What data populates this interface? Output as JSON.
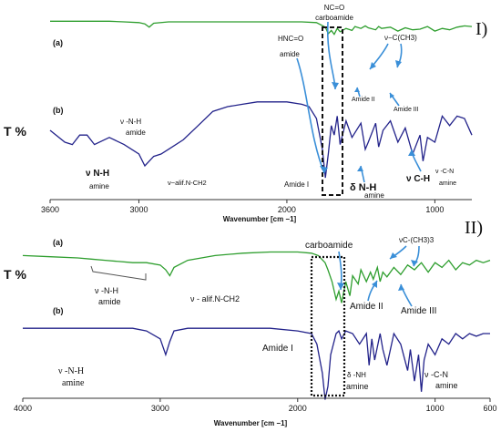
{
  "panels": [
    {
      "roman": "I)",
      "t_percent": "T %",
      "series": [
        {
          "label": "(a)",
          "color": "#2e9e2e",
          "name": ""
        },
        {
          "label": "(b)",
          "color": "#22228a",
          "name": ""
        }
      ],
      "xlabel": "Wavenumber [cm −1]",
      "xlim": [
        3600,
        750
      ],
      "xticks": [
        "3600",
        "3000",
        "2000",
        "1000"
      ],
      "annotations": {
        "hnc_o": "HNC=O",
        "amide_word": "amide",
        "nc_o": "NC=O",
        "carboamide": "carboamide",
        "v_c_ch3": "ν−C(CH3)",
        "amide_ii": "Amide II",
        "amide_iii": "Amide III",
        "v_nh_amide_1": "ν -N-H",
        "v_nh_amide_2": "amide",
        "v_nh_amine_1": "ν N-H",
        "v_nh_amine_2": "amine",
        "v_alif": "ν−alif.N-CH2",
        "amide_i": "Amide I",
        "delta_nh_1": "δ N-H",
        "delta_nh_2": "amine",
        "v_ch": "ν C-H",
        "v_cn_1": "ν -C-N",
        "v_cn_2": "amine"
      }
    },
    {
      "roman": "II)",
      "t_percent": "T %",
      "series": [
        {
          "label": "(a)",
          "color": "#2e9e2e",
          "name": ""
        },
        {
          "label": "(b)",
          "color": "#22228a",
          "name": ""
        }
      ],
      "xlabel": "Wavenumber [cm −1]",
      "xlim": [
        4000,
        600
      ],
      "xticks": [
        "4000",
        "3000",
        "2000",
        "1000",
        "600"
      ],
      "annotations": {
        "carboamide": "carboamide",
        "vc_ch3": "νC-(CH3)3",
        "v_nh_amide_1": "ν -N-H",
        "v_nh_amide_2": "amide",
        "v_alif": "ν - alif.N-CH2",
        "amide_ii": "Amide II",
        "amide_iii": "Amide III",
        "amide_i": "Amide I",
        "v_nh_amine_1": "ν -N-H",
        "v_nh_amine_2": "amine",
        "delta_nh_1": "δ -NH",
        "delta_nh_2": "amine",
        "v_cn_1": "ν -C-N",
        "v_cn_2": "amine"
      }
    }
  ],
  "chart_data": [
    {
      "type": "line",
      "title": "",
      "xlabel": "Wavenumber [cm −1]",
      "ylabel": "T %",
      "xlim": [
        3600,
        750
      ],
      "grid": false,
      "series": [
        {
          "name": "(a)",
          "x": [
            3600,
            3400,
            3200,
            3100,
            3000,
            2960,
            2930,
            2900,
            2800,
            2600,
            2400,
            2200,
            2000,
            1900,
            1800,
            1740,
            1720,
            1700,
            1680,
            1660,
            1640,
            1600,
            1560,
            1540,
            1500,
            1470,
            1450,
            1400,
            1380,
            1360,
            1300,
            1250,
            1200,
            1150,
            1100,
            1050,
            1000,
            950,
            900,
            850,
            800,
            750
          ],
          "y": [
            44,
            44,
            44,
            43,
            42,
            40,
            35,
            41,
            43,
            43,
            43,
            43,
            43,
            43,
            42,
            35,
            25,
            30,
            24,
            33,
            28,
            33,
            30,
            36,
            33,
            37,
            34,
            31,
            36,
            33,
            35,
            29,
            34,
            31,
            32,
            36,
            29,
            33,
            31,
            35,
            37,
            36
          ]
        },
        {
          "name": "(b)",
          "x": [
            3600,
            3500,
            3450,
            3400,
            3350,
            3300,
            3200,
            3100,
            3000,
            2960,
            2930,
            2900,
            2850,
            2800,
            2700,
            2600,
            2500,
            2400,
            2300,
            2200,
            2100,
            2000,
            1900,
            1850,
            1800,
            1760,
            1740,
            1720,
            1700,
            1680,
            1660,
            1640,
            1600,
            1560,
            1500,
            1470,
            1450,
            1400,
            1380,
            1350,
            1300,
            1250,
            1200,
            1150,
            1100,
            1080,
            1050,
            1000,
            950,
            900,
            850,
            800,
            750
          ],
          "y": [
            20,
            15,
            14,
            18,
            18,
            14,
            17,
            14,
            10,
            5,
            7,
            9,
            10,
            12,
            16,
            22,
            28,
            30,
            31,
            32,
            32,
            32,
            31,
            30,
            25,
            12,
            0,
            10,
            22,
            18,
            26,
            14,
            24,
            17,
            23,
            12,
            15,
            23,
            13,
            20,
            24,
            15,
            21,
            10,
            18,
            7,
            17,
            15,
            26,
            22,
            26,
            25,
            18
          ]
        }
      ]
    },
    {
      "type": "line",
      "title": "",
      "xlabel": "Wavenumber [cm −1]",
      "ylabel": "T %",
      "xlim": [
        4000,
        600
      ],
      "grid": false,
      "series": [
        {
          "name": "(a)",
          "x": [
            4000,
            3800,
            3600,
            3500,
            3400,
            3300,
            3200,
            3100,
            3000,
            2960,
            2930,
            2900,
            2800,
            2600,
            2400,
            2200,
            2000,
            1900,
            1850,
            1800,
            1780,
            1750,
            1720,
            1700,
            1680,
            1650,
            1620,
            1600,
            1560,
            1540,
            1500,
            1470,
            1450,
            1420,
            1400,
            1380,
            1350,
            1300,
            1250,
            1200,
            1150,
            1100,
            1050,
            1000,
            950,
            900,
            850,
            800,
            750,
            700,
            650,
            600
          ],
          "y": [
            52,
            51,
            50,
            49,
            48,
            47,
            46,
            46,
            44,
            40,
            35,
            42,
            48,
            52,
            54,
            55,
            55,
            54,
            52,
            46,
            40,
            30,
            15,
            22,
            12,
            30,
            18,
            35,
            28,
            40,
            30,
            38,
            32,
            42,
            30,
            38,
            34,
            42,
            36,
            44,
            40,
            46,
            38,
            46,
            42,
            48,
            40,
            46,
            44,
            48,
            46,
            48
          ]
        },
        {
          "name": "(b)",
          "x": [
            4000,
            3800,
            3600,
            3400,
            3200,
            3100,
            3000,
            2960,
            2930,
            2900,
            2800,
            2600,
            2400,
            2200,
            2000,
            1900,
            1860,
            1820,
            1800,
            1780,
            1760,
            1720,
            1700,
            1680,
            1650,
            1600,
            1550,
            1500,
            1480,
            1460,
            1440,
            1400,
            1380,
            1350,
            1300,
            1250,
            1200,
            1180,
            1150,
            1120,
            1100,
            1080,
            1050,
            1000,
            950,
            900,
            850,
            800,
            750,
            700,
            650,
            600
          ],
          "y": [
            22,
            22,
            22,
            22,
            22,
            21,
            18,
            12,
            17,
            21,
            22,
            22,
            22,
            22,
            21,
            20,
            16,
            5,
            -5,
            0,
            12,
            20,
            21,
            18,
            21,
            20,
            16,
            20,
            8,
            18,
            10,
            20,
            14,
            8,
            20,
            16,
            6,
            14,
            2,
            12,
            -2,
            10,
            16,
            12,
            18,
            16,
            20,
            18,
            20,
            19,
            20,
            20
          ]
        }
      ]
    }
  ]
}
